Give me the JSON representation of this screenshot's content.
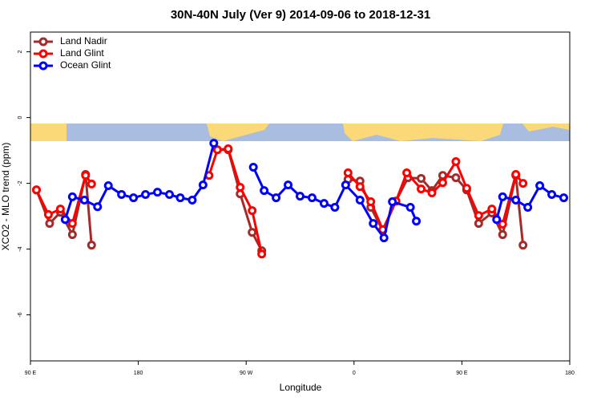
{
  "chart_data": {
    "type": "line",
    "title": "30N-40N July (Ver 9)   2014-09-06 to 2018-12-31",
    "x_label": "Longitude",
    "y_label": "XCO2 - MLO trend (ppm)",
    "xlim": [
      90,
      540
    ],
    "xticks": [
      {
        "value": 90,
        "label": "90 E"
      },
      {
        "value": 180,
        "label": "180"
      },
      {
        "value": 270,
        "label": "90 W"
      },
      {
        "value": 360,
        "label": "0"
      },
      {
        "value": 450,
        "label": "90 E"
      },
      {
        "value": 540,
        "label": "180"
      }
    ],
    "ylim": [
      -7.4,
      2.6
    ],
    "yticks": [
      -6,
      -4,
      -2,
      0,
      2
    ],
    "legend": "top-left",
    "series": [
      {
        "name": "Land Nadir",
        "color": "#a52a2a",
        "x": [
          95,
          106,
          115,
          125,
          136,
          141,
          null,
          246,
          255,
          265,
          275,
          283,
          null,
          355,
          365,
          374,
          384,
          395,
          405,
          416,
          425,
          434,
          445,
          454,
          464,
          475,
          484,
          495,
          501
        ],
        "values": [
          -2.2,
          -3.22,
          -2.88,
          -3.56,
          -1.73,
          -3.88,
          null,
          -0.98,
          -0.98,
          -2.32,
          -3.49,
          -4.05,
          null,
          -1.88,
          -1.93,
          -2.73,
          -3.44,
          -2.54,
          -1.83,
          -1.85,
          -2.22,
          -1.76,
          -1.83,
          -2.2,
          -3.22,
          -2.9,
          -3.56,
          -1.76,
          -3.88
        ]
      },
      {
        "name": "Land Glint",
        "color": "#ff0000",
        "x": [
          95,
          105,
          115,
          125,
          136,
          141,
          null,
          239,
          246,
          255,
          265,
          275,
          283,
          null,
          355,
          365,
          374,
          384,
          395,
          404,
          416,
          425,
          434,
          445,
          454,
          464,
          475,
          484,
          495,
          501
        ],
        "values": [
          -2.2,
          -2.95,
          -2.78,
          -3.22,
          -1.76,
          -2.02,
          null,
          -1.76,
          -0.98,
          -0.95,
          -2.12,
          -2.83,
          -4.15,
          null,
          -1.68,
          -2.1,
          -2.56,
          -3.41,
          -2.54,
          -1.68,
          -2.17,
          -2.29,
          -1.98,
          -1.34,
          -2.15,
          -2.98,
          -2.78,
          -3.24,
          -1.73,
          -2.0
        ]
      },
      {
        "name": "Ocean Glint",
        "color": "#0000ff",
        "x": [
          119,
          125,
          135,
          146,
          155,
          166,
          176,
          186,
          196,
          206,
          215,
          225,
          234,
          243,
          null,
          276,
          285,
          295,
          305,
          315,
          325,
          335,
          344,
          353,
          365,
          376,
          385,
          392,
          407,
          412,
          null,
          479,
          484,
          495,
          505,
          515,
          525,
          535
        ],
        "values": [
          -3.1,
          -2.41,
          -2.51,
          -2.71,
          -2.07,
          -2.34,
          -2.44,
          -2.34,
          -2.27,
          -2.34,
          -2.44,
          -2.51,
          -2.05,
          -0.78,
          null,
          -1.51,
          -2.22,
          -2.44,
          -2.05,
          -2.39,
          -2.44,
          -2.61,
          -2.73,
          -2.05,
          -2.51,
          -3.22,
          -3.66,
          -2.56,
          -2.73,
          -3.15,
          null,
          -3.1,
          -2.41,
          -2.51,
          -2.73,
          -2.07,
          -2.34,
          -2.44
        ]
      }
    ]
  }
}
